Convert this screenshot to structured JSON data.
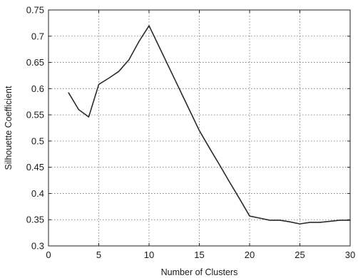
{
  "chart_data": {
    "type": "line",
    "title": "",
    "xlabel": "Number of Clusters",
    "ylabel": "Silhouette Coefficient",
    "xlim": [
      0,
      30
    ],
    "ylim": [
      0.3,
      0.75
    ],
    "xticks": [
      0,
      5,
      10,
      15,
      20,
      25,
      30
    ],
    "xtick_labels": [
      "0",
      "5",
      "10",
      "15",
      "20",
      "25",
      "30"
    ],
    "yticks": [
      0.3,
      0.35,
      0.4,
      0.45,
      0.5,
      0.55,
      0.6,
      0.65,
      0.7,
      0.75
    ],
    "ytick_labels": [
      "0.3",
      "0.35",
      "0.4",
      "0.45",
      "0.5",
      "0.55",
      "0.6",
      "0.65",
      "0.7",
      "0.75"
    ],
    "grid": true,
    "series": [
      {
        "x": [
          2,
          3,
          4,
          5,
          6,
          7,
          8,
          9,
          10,
          11,
          12,
          13,
          14,
          15,
          16,
          17,
          18,
          19,
          20,
          21,
          22,
          23,
          24,
          25,
          26,
          27,
          28,
          29,
          30
        ],
        "values": [
          0.592,
          0.56,
          0.546,
          0.608,
          0.62,
          0.633,
          0.655,
          0.69,
          0.72,
          0.68,
          0.64,
          0.6,
          0.56,
          0.52,
          0.487,
          0.455,
          0.422,
          0.39,
          0.357,
          0.353,
          0.349,
          0.349,
          0.346,
          0.342,
          0.345,
          0.345,
          0.347,
          0.349,
          0.349
        ]
      }
    ],
    "line_color": "#2b2b2b"
  }
}
